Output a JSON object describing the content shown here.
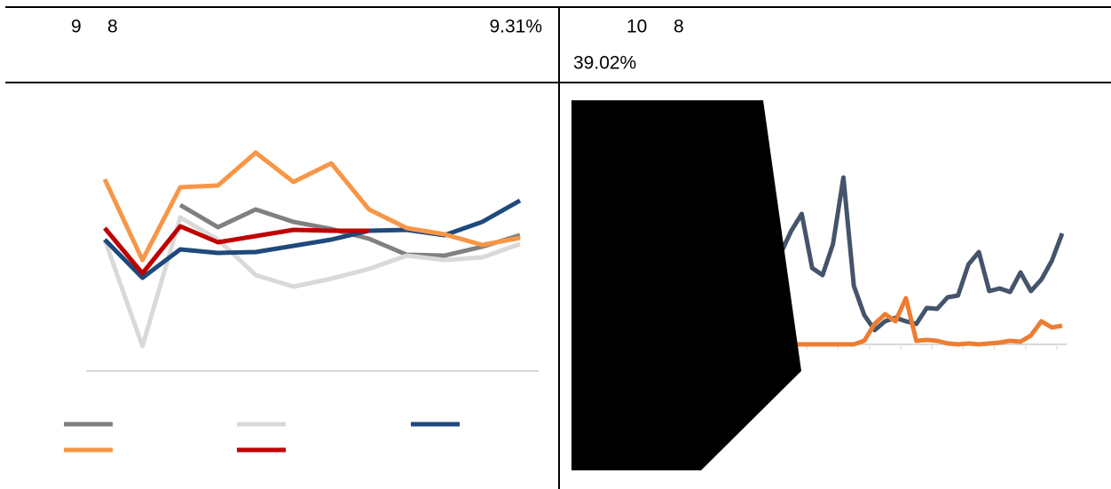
{
  "header": {
    "left": {
      "month": "9",
      "day": "8",
      "value": "9.31%"
    },
    "right": {
      "month": "10",
      "day": "8",
      "value": "39.02%"
    }
  },
  "chart_data": [
    {
      "type": "line",
      "categories": [
        null,
        null,
        null,
        null,
        null,
        null,
        null,
        null,
        null,
        null,
        null,
        null
      ],
      "ylim": [
        0,
        300
      ],
      "series": [
        {
          "color": "#808080",
          "values": [
            null,
            null,
            187,
            162,
            182,
            168,
            160,
            149,
            131,
            130,
            140,
            153
          ]
        },
        {
          "color": "#d9d9d9",
          "values": [
            148,
            28,
            173,
            148,
            108,
            95,
            104,
            115,
            130,
            125,
            128,
            143
          ]
        },
        {
          "color": "#1f497d",
          "values": [
            148,
            105,
            137,
            133,
            134,
            141,
            148,
            158,
            159,
            153,
            168,
            192
          ]
        },
        {
          "color": "#f79646",
          "values": [
            216,
            125,
            207,
            209,
            246,
            213,
            234,
            182,
            161,
            154,
            142,
            150
          ]
        },
        {
          "color": "#c00000",
          "values": [
            161,
            110,
            163,
            145,
            152,
            159,
            158,
            158,
            null,
            null,
            null,
            null
          ]
        }
      ]
    },
    {
      "type": "line",
      "categories": [
        null,
        null,
        null,
        null,
        null,
        null,
        null,
        null,
        null,
        null,
        null,
        null,
        null,
        null,
        null,
        null,
        null,
        null,
        null,
        null,
        null,
        null,
        null,
        null,
        null,
        null,
        null,
        null
      ],
      "ylim": [
        0,
        200
      ],
      "series": [
        {
          "color": "#44546a",
          "values": [
            103,
            128,
            147,
            86,
            78,
            113,
            188,
            66,
            33,
            16,
            26,
            30,
            26,
            23,
            41,
            40,
            53,
            55,
            90,
            104,
            60,
            63,
            59,
            81,
            60,
            73,
            94,
            125
          ]
        },
        {
          "color": "#ed7d31",
          "values": [
            0,
            0,
            0,
            0,
            0,
            0,
            0,
            0,
            4,
            23,
            34,
            26,
            52,
            4,
            5,
            4,
            1,
            0,
            1,
            0,
            1,
            2,
            4,
            3,
            10,
            26,
            19,
            21
          ]
        }
      ]
    }
  ]
}
